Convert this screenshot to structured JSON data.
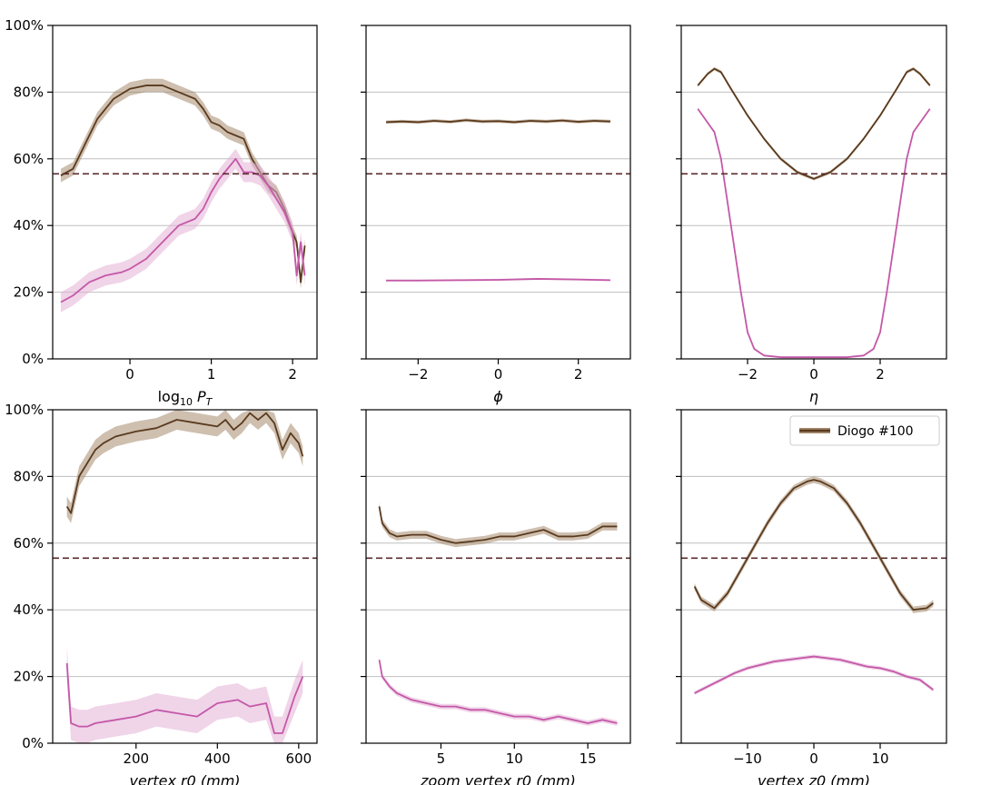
{
  "figure": {
    "legend_label": "Diogo #100"
  },
  "colors": {
    "brown": "#5a3a1e",
    "brown_band": "#a58a6e",
    "pink": "#c458a8",
    "pink_band": "#e3b0d6",
    "reference": "#5a2a2a",
    "grid": "#bfbfbf"
  },
  "y_tick_labels": [
    "0%",
    "20%",
    "40%",
    "60%",
    "80%",
    "100%"
  ],
  "chart_data": [
    {
      "type": "line",
      "panel": "top-left",
      "xlabel_main": "log",
      "xlabel_sub": "10",
      "xlabel_var": "P",
      "xlabel_var_sub": "T",
      "xlim": [
        -0.95,
        2.3
      ],
      "ylim": [
        0,
        100
      ],
      "x_ticks": [
        0,
        1,
        2
      ],
      "x_tick_labels": [
        "0",
        "1",
        "2"
      ],
      "reference_y": 55.5,
      "series": [
        {
          "name": "Diogo #100",
          "color": "brown",
          "band": 2,
          "x": [
            -0.85,
            -0.7,
            -0.6,
            -0.4,
            -0.2,
            0.0,
            0.2,
            0.4,
            0.6,
            0.8,
            0.9,
            1.0,
            1.1,
            1.2,
            1.3,
            1.4,
            1.5,
            1.6,
            1.7,
            1.8,
            1.9,
            2.0,
            2.05,
            2.1,
            2.15
          ],
          "y": [
            55,
            57,
            62,
            72,
            78,
            81,
            82,
            82,
            80,
            78,
            75,
            71,
            70,
            68,
            67,
            66,
            60,
            56,
            52,
            50,
            45,
            38,
            35,
            23,
            34
          ]
        },
        {
          "name": "pink",
          "color": "pink",
          "band": 3,
          "x": [
            -0.85,
            -0.7,
            -0.5,
            -0.3,
            -0.1,
            0.0,
            0.2,
            0.4,
            0.6,
            0.8,
            0.9,
            1.0,
            1.1,
            1.2,
            1.3,
            1.4,
            1.5,
            1.6,
            1.7,
            1.8,
            1.9,
            2.0,
            2.05,
            2.1,
            2.15
          ],
          "y": [
            17,
            19,
            23,
            25,
            26,
            27,
            30,
            35,
            40,
            42,
            45,
            50,
            54,
            57,
            60,
            56,
            56,
            55,
            52,
            48,
            44,
            38,
            25,
            35,
            25
          ]
        }
      ]
    },
    {
      "type": "line",
      "panel": "top-middle",
      "xlabel": "ϕ",
      "xlim": [
        -3.3,
        3.3
      ],
      "ylim": [
        0,
        100
      ],
      "x_ticks": [
        -2,
        0,
        2
      ],
      "x_tick_labels": [
        "−2",
        "0",
        "2"
      ],
      "reference_y": 55.5,
      "series": [
        {
          "name": "Diogo #100",
          "color": "brown",
          "band": 0.5,
          "x": [
            -2.8,
            -2.4,
            -2.0,
            -1.6,
            -1.2,
            -0.8,
            -0.4,
            0.0,
            0.4,
            0.8,
            1.2,
            1.6,
            2.0,
            2.4,
            2.8
          ],
          "y": [
            71,
            71.2,
            71,
            71.4,
            71.1,
            71.6,
            71.2,
            71.3,
            71,
            71.4,
            71.2,
            71.5,
            71.1,
            71.4,
            71.2
          ]
        },
        {
          "name": "pink",
          "color": "pink",
          "band": 0.3,
          "x": [
            -2.8,
            -2.0,
            -1.0,
            0.0,
            1.0,
            2.0,
            2.8
          ],
          "y": [
            23.5,
            23.5,
            23.6,
            23.7,
            24,
            23.8,
            23.6
          ]
        }
      ]
    },
    {
      "type": "line",
      "panel": "top-right",
      "xlabel": "η",
      "xlim": [
        -4.0,
        4.0
      ],
      "ylim": [
        0,
        100
      ],
      "x_ticks": [
        -2,
        0,
        2
      ],
      "x_tick_labels": [
        "−2",
        "0",
        "2"
      ],
      "reference_y": 55.5,
      "series": [
        {
          "name": "Diogo #100",
          "color": "brown",
          "band": 0.5,
          "x": [
            -3.5,
            -3.2,
            -3.0,
            -2.8,
            -2.5,
            -2.0,
            -1.5,
            -1.0,
            -0.5,
            0.0,
            0.5,
            1.0,
            1.5,
            2.0,
            2.5,
            2.8,
            3.0,
            3.2,
            3.5
          ],
          "y": [
            82,
            85.5,
            87,
            86,
            81,
            73,
            66,
            60,
            56,
            54,
            56,
            60,
            66,
            73,
            81,
            86,
            87,
            85.5,
            82
          ]
        },
        {
          "name": "pink",
          "color": "pink",
          "band": 0.3,
          "x": [
            -3.5,
            -3.0,
            -2.8,
            -2.5,
            -2.2,
            -2.0,
            -1.8,
            -1.5,
            -1.0,
            0.0,
            1.0,
            1.5,
            1.8,
            2.0,
            2.2,
            2.5,
            2.8,
            3.0,
            3.5
          ],
          "y": [
            75,
            68,
            60,
            40,
            20,
            8,
            3,
            1,
            0.5,
            0.5,
            0.5,
            1,
            3,
            8,
            20,
            40,
            60,
            68,
            75
          ]
        }
      ]
    },
    {
      "type": "line",
      "panel": "bottom-left",
      "xlabel": "vertex r0 (mm)",
      "xlim": [
        -5,
        645
      ],
      "ylim": [
        0,
        100
      ],
      "x_ticks": [
        200,
        400,
        600
      ],
      "x_tick_labels": [
        "200",
        "400",
        "600"
      ],
      "reference_y": 55.5,
      "series": [
        {
          "name": "Diogo #100",
          "color": "brown",
          "band": 3,
          "x": [
            30,
            40,
            60,
            80,
            100,
            120,
            150,
            200,
            250,
            300,
            350,
            400,
            420,
            440,
            460,
            480,
            500,
            520,
            540,
            560,
            580,
            600,
            610
          ],
          "y": [
            71,
            69,
            80,
            84,
            88,
            90,
            92,
            93.5,
            94.5,
            97,
            96,
            95,
            97,
            94,
            96,
            99,
            97,
            99,
            96,
            88,
            93,
            90,
            86
          ]
        },
        {
          "name": "pink",
          "color": "pink",
          "band": 5,
          "x": [
            30,
            40,
            60,
            80,
            100,
            150,
            200,
            250,
            300,
            350,
            400,
            450,
            480,
            520,
            540,
            560,
            590,
            610
          ],
          "y": [
            24,
            6,
            5,
            5,
            6,
            7,
            8,
            10,
            9,
            8,
            12,
            13,
            11,
            12,
            3,
            3,
            14,
            20
          ]
        }
      ]
    },
    {
      "type": "line",
      "panel": "bottom-middle",
      "xlabel": "zoom vertex r0 (mm)",
      "xlim": [
        -0.1,
        17.9
      ],
      "ylim": [
        0,
        100
      ],
      "x_ticks": [
        5,
        10,
        15
      ],
      "x_tick_labels": [
        "5",
        "10",
        "15"
      ],
      "reference_y": 55.5,
      "series": [
        {
          "name": "Diogo #100",
          "color": "brown",
          "band": 1.2,
          "x": [
            0.8,
            1.0,
            1.5,
            2.0,
            3.0,
            4.0,
            5.0,
            6.0,
            7.0,
            8.0,
            9.0,
            10.0,
            11.0,
            12.0,
            13.0,
            14.0,
            15.0,
            16.0,
            17.0
          ],
          "y": [
            71,
            66,
            63,
            62,
            62.5,
            62.5,
            61,
            60,
            60.5,
            61,
            62,
            62,
            63,
            64,
            62,
            62,
            62.5,
            65,
            65
          ]
        },
        {
          "name": "pink",
          "color": "pink",
          "band": 0.8,
          "x": [
            0.8,
            1.0,
            1.5,
            2.0,
            3.0,
            4.0,
            5.0,
            6.0,
            7.0,
            8.0,
            9.0,
            10.0,
            11.0,
            12.0,
            13.0,
            14.0,
            15.0,
            16.0,
            17.0
          ],
          "y": [
            25,
            20,
            17,
            15,
            13,
            12,
            11,
            11,
            10,
            10,
            9,
            8,
            8,
            7,
            8,
            7,
            6,
            7,
            6
          ]
        }
      ]
    },
    {
      "type": "line",
      "panel": "bottom-right",
      "xlabel": "vertex z0 (mm)",
      "xlim": [
        -20,
        20
      ],
      "ylim": [
        0,
        100
      ],
      "x_ticks": [
        -10,
        0,
        10
      ],
      "x_tick_labels": [
        "−10",
        "0",
        "10"
      ],
      "reference_y": 55.5,
      "series": [
        {
          "name": "Diogo #100",
          "color": "brown",
          "band": 1,
          "x": [
            -18,
            -17,
            -15,
            -13,
            -11,
            -9,
            -7,
            -5,
            -3,
            -1,
            0,
            1,
            3,
            5,
            7,
            9,
            11,
            13,
            15,
            17,
            18
          ],
          "y": [
            47,
            43,
            40.5,
            45,
            52,
            59,
            66,
            72,
            76.5,
            78.5,
            79,
            78.5,
            76.5,
            72,
            66,
            59,
            52,
            45,
            40,
            40.5,
            42
          ]
        },
        {
          "name": "pink",
          "color": "pink",
          "band": 0.6,
          "x": [
            -18,
            -16,
            -14,
            -12,
            -10,
            -8,
            -6,
            -4,
            -2,
            0,
            2,
            4,
            6,
            8,
            10,
            12,
            14,
            16,
            18
          ],
          "y": [
            15,
            17,
            19,
            21,
            22.5,
            23.5,
            24.5,
            25,
            25.5,
            26,
            25.5,
            25,
            24,
            23,
            22.5,
            21.5,
            20,
            19,
            16
          ]
        }
      ]
    }
  ]
}
